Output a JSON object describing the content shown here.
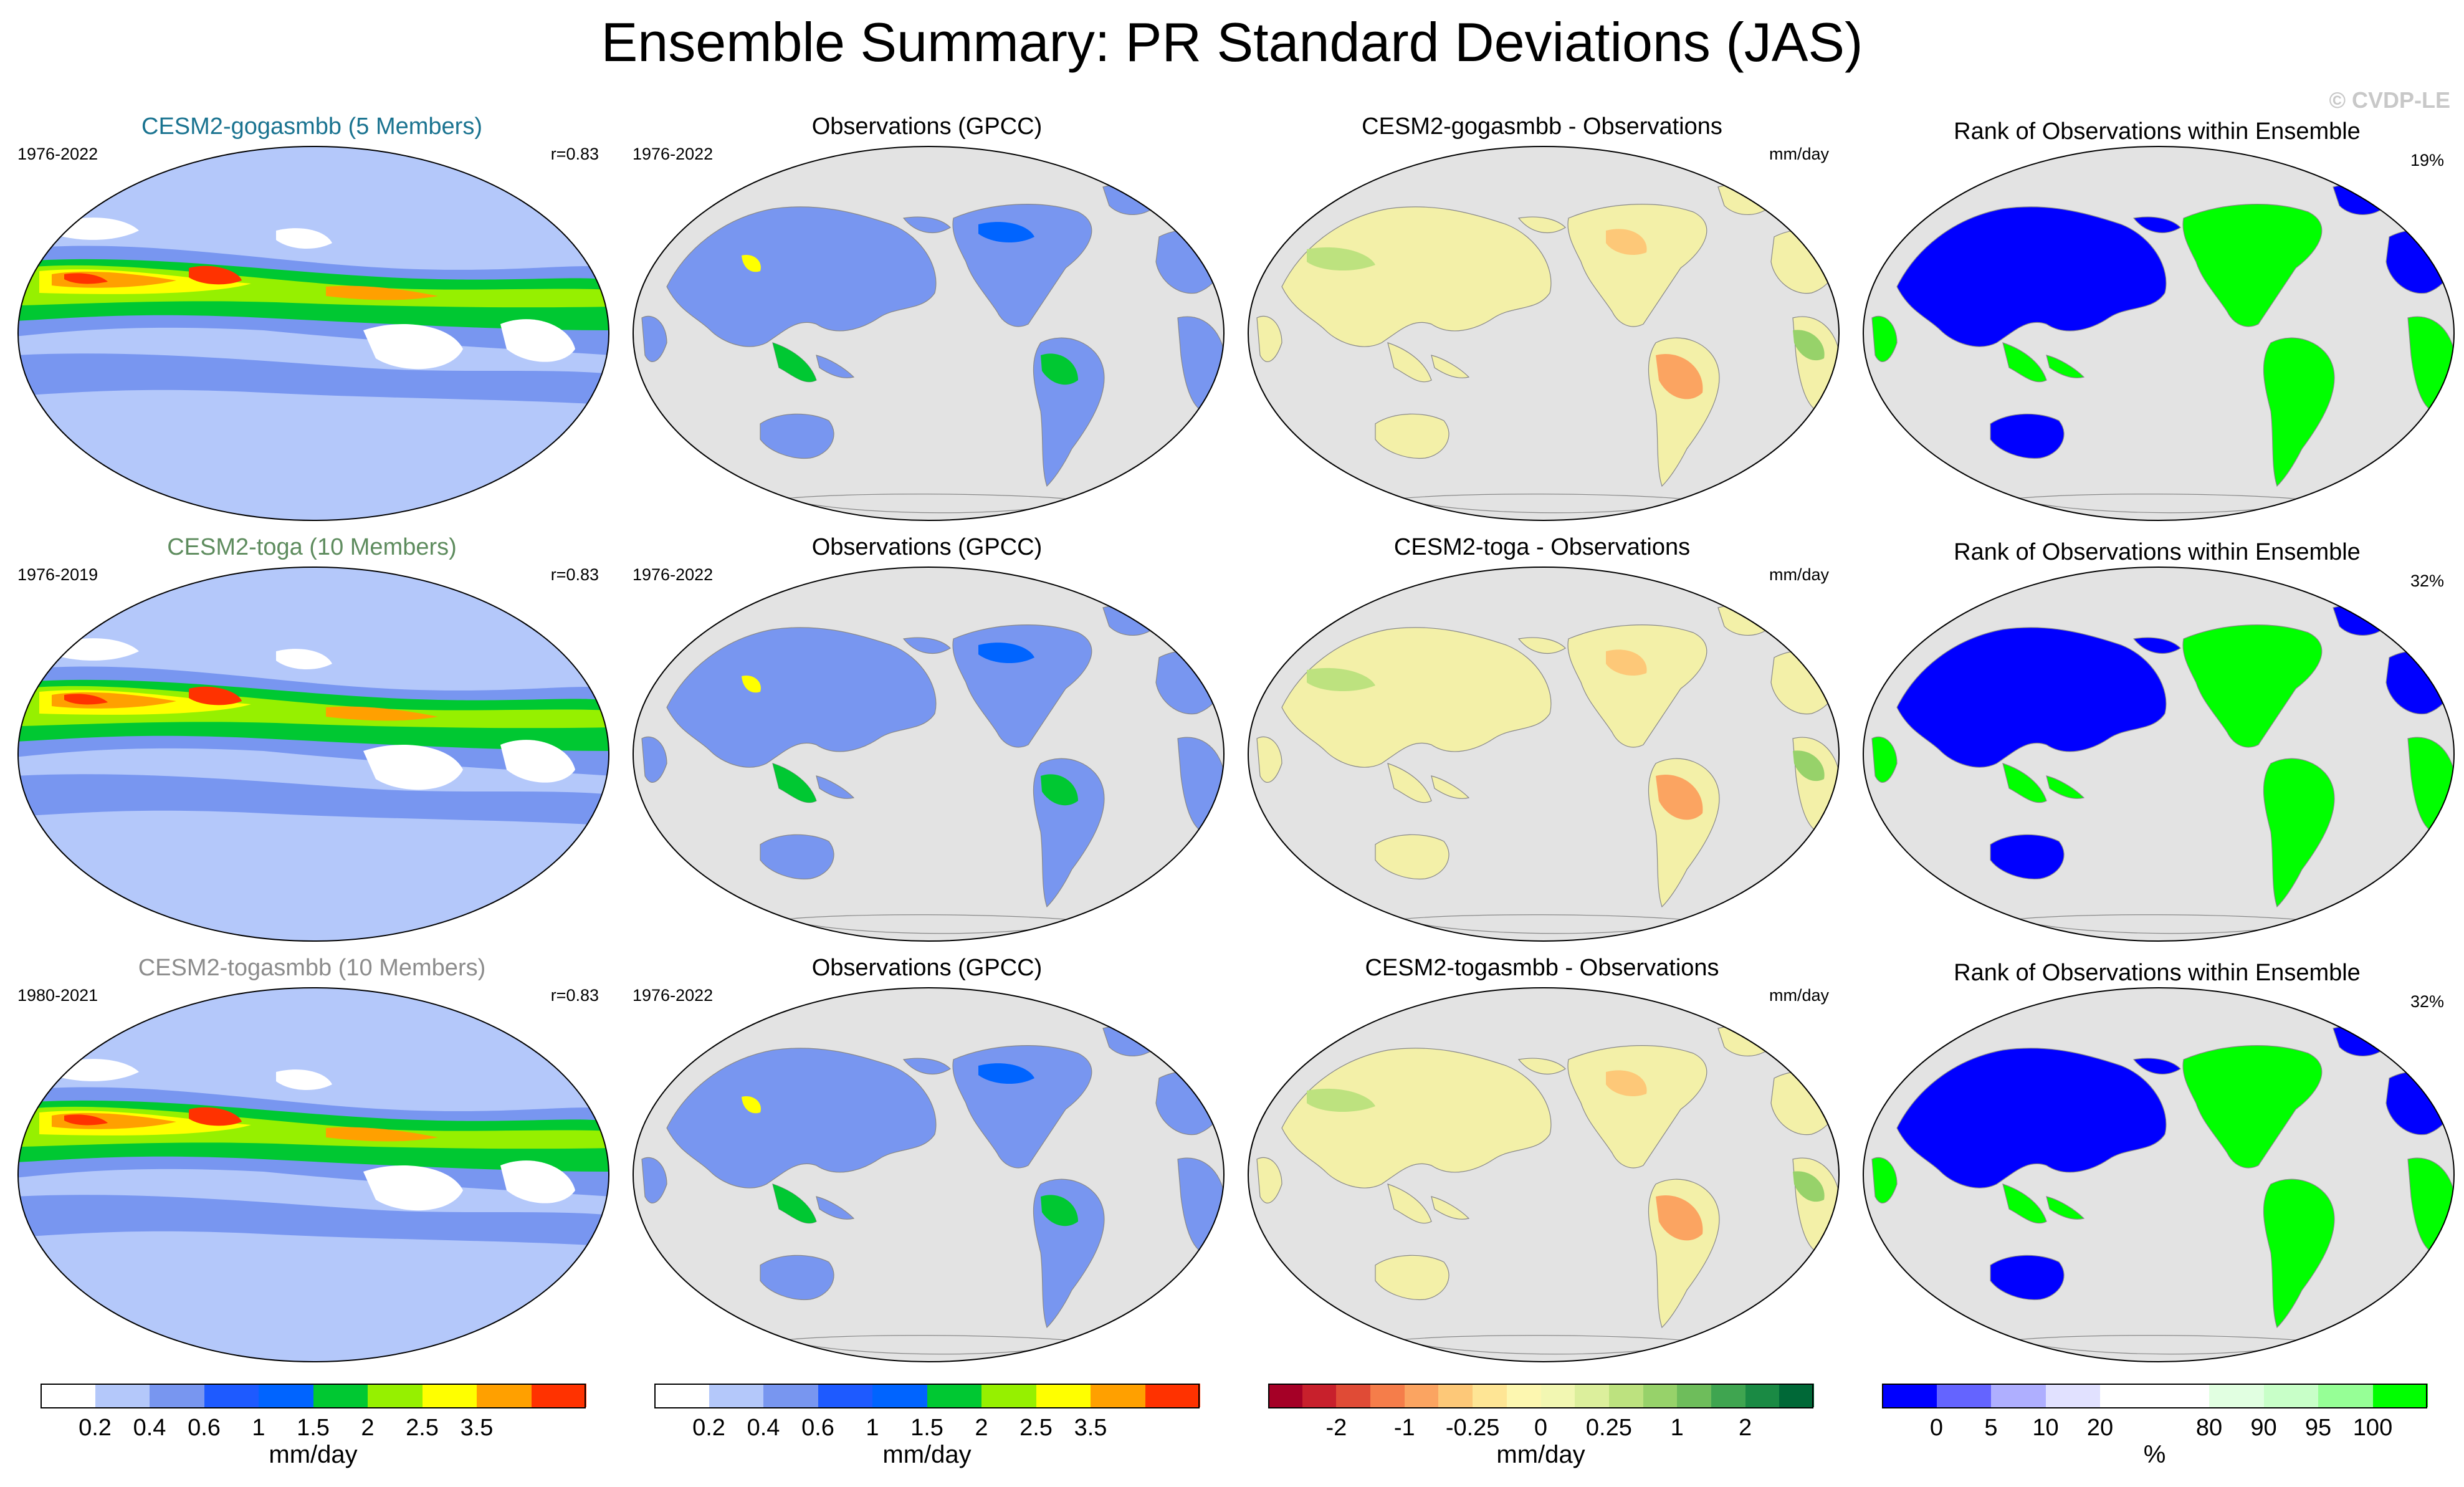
{
  "title": "Ensemble Summary: PR Standard Deviations (JAS)",
  "credit": "© CVDP-LE",
  "colors": {
    "ocean": "#e3e3e3",
    "land_base": "#f3f0a8",
    "blue_dark": "#0000ff",
    "green_bright": "#00ff00"
  },
  "rows": [
    {
      "model": {
        "title": "CESM2-gogasmbb (5 Members)",
        "title_color": "#1a7390",
        "years": "1976-2022",
        "r": "r=0.83"
      },
      "obs": {
        "title": "Observations (GPCC)",
        "years": "1976-2022"
      },
      "diff": {
        "title": "CESM2-gogasmbb - Observations",
        "units": "mm/day"
      },
      "rank": {
        "title": "Rank of Observations within Ensemble",
        "pct": "19%"
      }
    },
    {
      "model": {
        "title": "CESM2-toga (10 Members)",
        "title_color": "#5e8c5e",
        "years": "1976-2019",
        "r": "r=0.83"
      },
      "obs": {
        "title": "Observations (GPCC)",
        "years": "1976-2022"
      },
      "diff": {
        "title": "CESM2-toga - Observations",
        "units": "mm/day"
      },
      "rank": {
        "title": "Rank of Observations within Ensemble",
        "pct": "32%"
      }
    },
    {
      "model": {
        "title": "CESM2-togasmbb (10 Members)",
        "title_color": "#8c8c8c",
        "years": "1980-2021",
        "r": "r=0.83"
      },
      "obs": {
        "title": "Observations (GPCC)",
        "years": "1976-2022"
      },
      "diff": {
        "title": "CESM2-togasmbb - Observations",
        "units": "mm/day"
      },
      "rank": {
        "title": "Rank of Observations within Ensemble",
        "pct": "32%"
      }
    }
  ],
  "colorbars": [
    {
      "name": "model-stddev-colorbar",
      "unit": "mm/day",
      "colors": [
        "#ffffff",
        "#b4c8fa",
        "#7896f0",
        "#1e5aff",
        "#0064ff",
        "#00c832",
        "#96f000",
        "#ffff00",
        "#ffa000",
        "#ff3200"
      ],
      "ticks": [
        "0.2",
        "0.4",
        "0.6",
        "1",
        "1.5",
        "2",
        "2.5",
        "3.5"
      ]
    },
    {
      "name": "obs-stddev-colorbar",
      "unit": "mm/day",
      "colors": [
        "#ffffff",
        "#b4c8fa",
        "#7896f0",
        "#1e5aff",
        "#0064ff",
        "#00c832",
        "#96f000",
        "#ffff00",
        "#ffa000",
        "#ff3200"
      ],
      "ticks": [
        "0.2",
        "0.4",
        "0.6",
        "1",
        "1.5",
        "2",
        "2.5",
        "3.5"
      ]
    },
    {
      "name": "difference-colorbar",
      "unit": "mm/day",
      "colors": [
        "#a50026",
        "#c8202c",
        "#e04b36",
        "#f57d4a",
        "#fba461",
        "#fdc878",
        "#fee595",
        "#fdf7b0",
        "#f2f7b2",
        "#dcef9c",
        "#bde27f",
        "#97d26a",
        "#6ebd5b",
        "#3fa550",
        "#1a8a44",
        "#006837"
      ],
      "ticks": [
        "-2",
        "-1",
        "-0.25",
        "0",
        "0.25",
        "1",
        "2"
      ]
    },
    {
      "name": "rank-colorbar",
      "unit": "%",
      "colors": [
        "#0000ff",
        "#6464ff",
        "#afafff",
        "#e1e1ff",
        "#ffffff",
        "#ffffff",
        "#e1ffe1",
        "#c8ffc8",
        "#96ff96",
        "#00ff00"
      ],
      "ticks": [
        "0",
        "5",
        "10",
        "20",
        "80",
        "90",
        "95",
        "100"
      ]
    }
  ]
}
